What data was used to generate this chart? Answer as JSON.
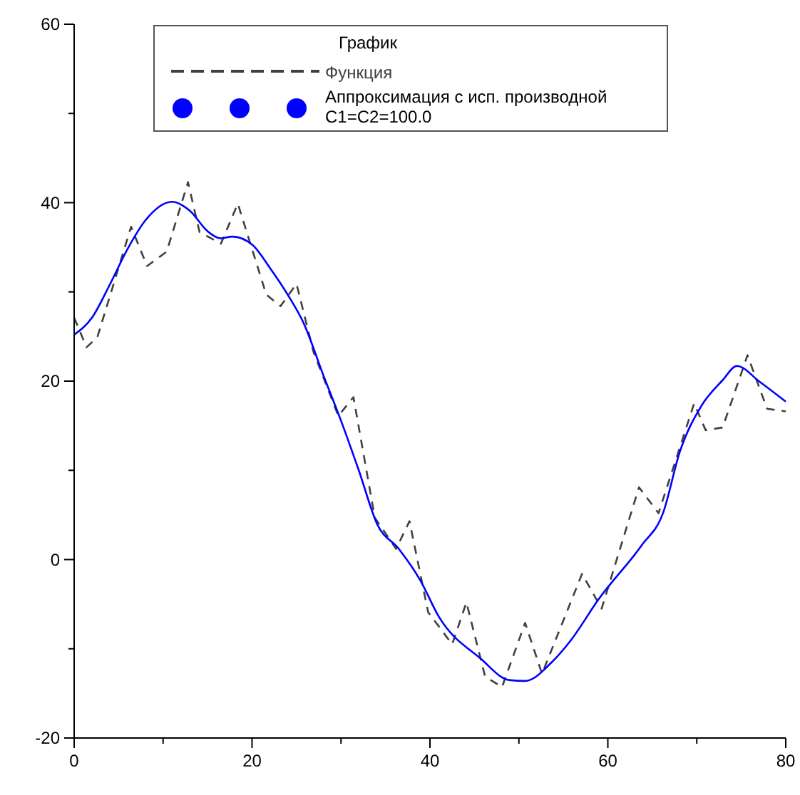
{
  "chart_data": {
    "type": "line",
    "legend_title": "График",
    "legend": "top",
    "xlim": [
      0,
      80
    ],
    "ylim": [
      -20,
      60
    ],
    "xticks": [
      0,
      {
        "value": 10,
        "label": null
      },
      20,
      {
        "value": 30,
        "label": null
      },
      40,
      {
        "value": 50,
        "label": null
      },
      60,
      {
        "value": 70,
        "label": null
      },
      80
    ],
    "yticks": [
      -20,
      {
        "value": -10,
        "label": null
      },
      0,
      {
        "value": 10,
        "label": null
      },
      20,
      {
        "value": 30,
        "label": null
      },
      40,
      {
        "value": 50,
        "label": null
      },
      60
    ],
    "series": [
      {
        "name": "Функция",
        "color": "#404040",
        "line_style": "dashed",
        "x": [
          0,
          1.4,
          2.6,
          6.4,
          8.2,
          10.4,
          12.8,
          14.1,
          16.5,
          18.4,
          21.6,
          23.2,
          25,
          26.9,
          29.7,
          31.4,
          33.8,
          36.2,
          37.7,
          39.8,
          42.5,
          44.1,
          46.2,
          48.1,
          50.7,
          52.6,
          57.1,
          59.3,
          63.5,
          65.7,
          69.7,
          71,
          72.9,
          75.7,
          77.9,
          80
        ],
        "values": [
          27.1,
          23.8,
          24.9,
          37.3,
          32.9,
          34.5,
          42.3,
          36.7,
          35.4,
          39.9,
          29.7,
          28.4,
          30.9,
          23.3,
          16.1,
          18.2,
          4.7,
          1.2,
          4.3,
          -5.9,
          -9.5,
          -4.8,
          -13.1,
          -14.3,
          -7.1,
          -12.8,
          -1.6,
          -5.5,
          8.1,
          5.2,
          17.5,
          14.5,
          14.8,
          22.9,
          16.9,
          16.6
        ]
      },
      {
        "name": "Аппроксимация с исп. производной\nC1=C2=100.0",
        "color": "#0000ff",
        "line_style": "solid",
        "x": [
          0,
          2,
          4,
          6,
          8,
          11,
          13,
          15,
          16.5,
          17.8,
          20,
          22,
          24,
          25.8,
          28,
          30.1,
          32,
          34.1,
          36.5,
          38.9,
          41,
          45.7,
          48.9,
          50.7,
          53.7,
          55.8,
          59,
          63.8,
          66.2,
          68.1,
          70.5,
          72.9,
          74.5,
          77.1,
          80
        ],
        "values": [
          25.2,
          27.1,
          30.8,
          34.8,
          38,
          40.1,
          39.1,
          36.8,
          36,
          36.2,
          35.3,
          32.7,
          29.7,
          26.5,
          20.7,
          15.3,
          10,
          3.9,
          1.2,
          -2.3,
          -6.4,
          -11.1,
          -13.5,
          -13.6,
          -11.5,
          -9.1,
          -4.4,
          1.6,
          5.2,
          12.1,
          17.2,
          20.1,
          21.7,
          19.9,
          17.7
        ]
      }
    ]
  }
}
